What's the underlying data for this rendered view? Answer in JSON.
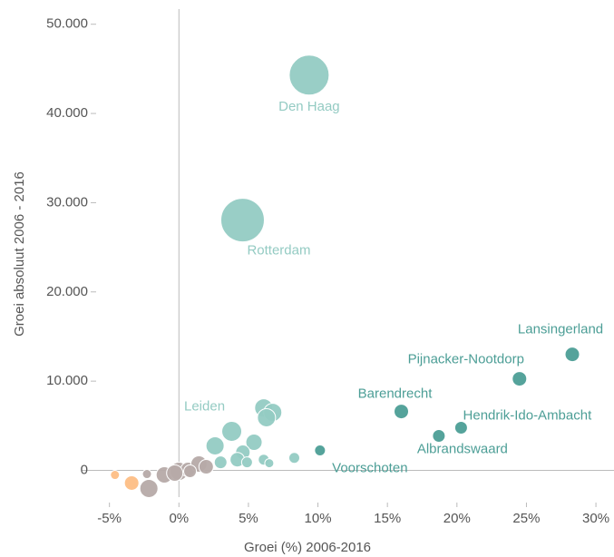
{
  "chart_data": {
    "type": "scatter",
    "x_label": "Groei (%) 2006-2016",
    "y_label": "Groei absoluut 2006 - 2016",
    "xlim": [
      -7,
      31.3
    ],
    "ylim": [
      -3000,
      51700
    ],
    "xticks": [
      {
        "value": -5,
        "label": "-5%"
      },
      {
        "value": 0,
        "label": "0%"
      },
      {
        "value": 5,
        "label": "5%"
      },
      {
        "value": 10,
        "label": "10%"
      },
      {
        "value": 15,
        "label": "15%"
      },
      {
        "value": 20,
        "label": "20%"
      },
      {
        "value": 25,
        "label": "25%"
      },
      {
        "value": 30,
        "label": "30%"
      }
    ],
    "yticks": [
      0,
      {
        "value": 10000,
        "label": "10.000"
      },
      {
        "value": 20000,
        "label": "20.000"
      },
      {
        "value": 30000,
        "label": "30.000"
      },
      {
        "value": 40000,
        "label": "40.000"
      },
      {
        "value": 50000,
        "label": "50.000"
      }
    ],
    "series": [
      {
        "color": "#b6aaa8",
        "x": [
          -2.16,
          -1.05,
          0,
          0.65,
          1.44,
          1.96,
          -2.3,
          -0.3,
          0.8
        ],
        "values": [
          -2030,
          -510,
          -100,
          100,
          710,
          400,
          -410,
          -300,
          -100
        ],
        "sizes": [
          10,
          9,
          10,
          8,
          9,
          8,
          5,
          9,
          7
        ]
      },
      {
        "color": "#fdbe85",
        "x": [
          -3.4,
          -4.6
        ],
        "values": [
          -1420,
          -510
        ],
        "sizes": [
          8,
          5
        ]
      },
      {
        "color": "#94cbc3",
        "x": [
          9.37,
          4.58,
          3.8,
          6.1,
          6.75,
          6.3,
          5.4,
          2.6,
          4.6,
          4.2,
          3.0,
          6.1,
          6.5,
          8.3,
          4.9
        ],
        "values": [
          44300,
          28050,
          4370,
          7000,
          6500,
          5900,
          3150,
          2750,
          2030,
          1200,
          900,
          1200,
          800,
          1400,
          900
        ],
        "sizes": [
          22,
          24,
          11,
          10,
          10,
          10,
          9,
          10,
          8,
          8,
          7,
          6,
          5,
          6,
          6
        ],
        "labels": [
          "Den Haag",
          "Rotterdam",
          "Leiden",
          null,
          null,
          null,
          null,
          null,
          null,
          null,
          null,
          null,
          null,
          null,
          null
        ]
      },
      {
        "color": "#4c9e96",
        "x": [
          28.3,
          24.5,
          16.0,
          20.3,
          18.7,
          10.15
        ],
        "values": [
          13000,
          10260,
          6600,
          4780,
          3860,
          2240
        ],
        "sizes": [
          8,
          8,
          8,
          7,
          7,
          6
        ],
        "labels": [
          "Lansingerland",
          "Pijnacker-Nootdorp",
          "Barendrecht",
          "Hendrik-Ido-Ambacht",
          "Albrandswaard",
          "Voorschoten"
        ]
      }
    ]
  }
}
